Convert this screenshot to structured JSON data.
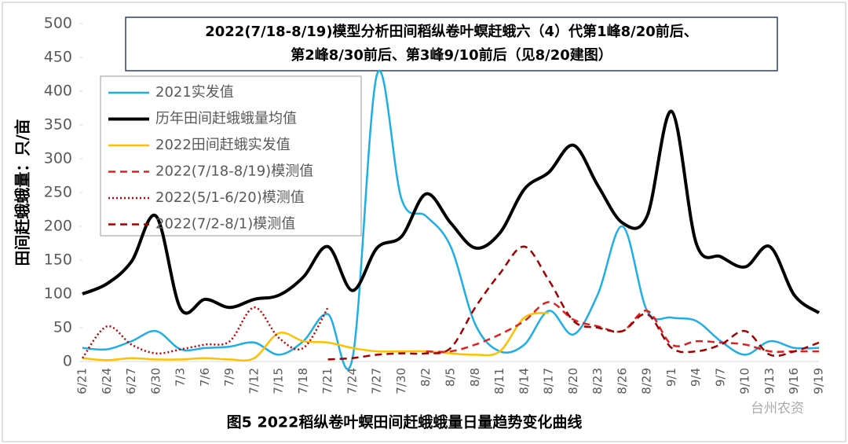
{
  "chart_data": {
    "type": "line",
    "title": "2022(7/18-8/19)模型分析田间稻纵卷叶螟赶蛾六（4）代第1峰8/20前后、",
    "subtitle": "第2峰8/30前后、第3峰9/10前后（见8/20建图）",
    "y_label": "田间赶蛾蛾量：只/亩",
    "caption": "图5   2022稻纵卷叶螟田间赶蛾蛾量日量趋势变化曲线",
    "watermark": "台州农资",
    "categories": [
      "6/21",
      "6/24",
      "6/27",
      "6/30",
      "7/3",
      "7/6",
      "7/9",
      "7/12",
      "7/15",
      "7/18",
      "7/21",
      "7/24",
      "7/27",
      "7/30",
      "8/2",
      "8/5",
      "8/8",
      "8/11",
      "8/14",
      "8/17",
      "8/20",
      "8/23",
      "8/26",
      "8/29",
      "9/1",
      "9/4",
      "9/7",
      "9/10",
      "9/13",
      "9/16",
      "9/19"
    ],
    "ylim": [
      0,
      500
    ],
    "yticks": [
      0,
      50,
      100,
      150,
      200,
      250,
      300,
      350,
      400,
      450,
      500
    ],
    "series": [
      {
        "name": "2021实发值",
        "color": "#1eaee6",
        "line_style": "solid",
        "values": [
          20,
          18,
          30,
          45,
          18,
          20,
          22,
          28,
          10,
          30,
          70,
          5,
          425,
          240,
          215,
          170,
          55,
          15,
          25,
          75,
          40,
          100,
          200,
          75,
          65,
          60,
          30,
          10,
          30,
          20,
          20
        ]
      },
      {
        "name": "历年田间赶蛾蛾量均值",
        "color": "#000000",
        "line_style": "solid",
        "values": [
          100,
          115,
          148,
          215,
          78,
          92,
          80,
          92,
          98,
          125,
          170,
          105,
          168,
          185,
          248,
          205,
          168,
          190,
          255,
          280,
          320,
          260,
          205,
          215,
          370,
          175,
          155,
          140,
          170,
          98,
          72
        ]
      },
      {
        "name": "2022田间赶蛾实发值",
        "color": "#ffc000",
        "line_style": "solid",
        "values": [
          5,
          2,
          5,
          3,
          3,
          5,
          3,
          5,
          42,
          30,
          28,
          20,
          15,
          15,
          15,
          12,
          10,
          15,
          65,
          72,
          null,
          null,
          null,
          null,
          null,
          null,
          null,
          null,
          null,
          null,
          null
        ]
      },
      {
        "name": "2022(7/18-8/19)模测值",
        "color": "#e02020",
        "line_style": "dashed",
        "values": [
          null,
          null,
          null,
          null,
          null,
          null,
          null,
          null,
          null,
          null,
          null,
          null,
          null,
          null,
          15,
          15,
          25,
          40,
          60,
          88,
          62,
          52,
          45,
          75,
          25,
          30,
          28,
          25,
          15,
          15,
          15
        ]
      },
      {
        "name": "2022(5/1-6/20)模测值",
        "color": "#c00000",
        "line_style": "dotted",
        "values": [
          5,
          52,
          25,
          12,
          18,
          25,
          30,
          80,
          35,
          20,
          80,
          null,
          null,
          null,
          null,
          null,
          null,
          null,
          null,
          null,
          null,
          null,
          null,
          null,
          null,
          null,
          null,
          null,
          null,
          null,
          null
        ]
      },
      {
        "name": "2022(7/2-8/1)模测值",
        "color": "#a00000",
        "line_style": "dashed",
        "values": [
          null,
          null,
          null,
          null,
          null,
          null,
          null,
          null,
          null,
          null,
          3,
          5,
          10,
          12,
          12,
          20,
          80,
          130,
          170,
          120,
          60,
          50,
          45,
          70,
          20,
          15,
          25,
          45,
          10,
          15,
          28
        ]
      }
    ]
  }
}
